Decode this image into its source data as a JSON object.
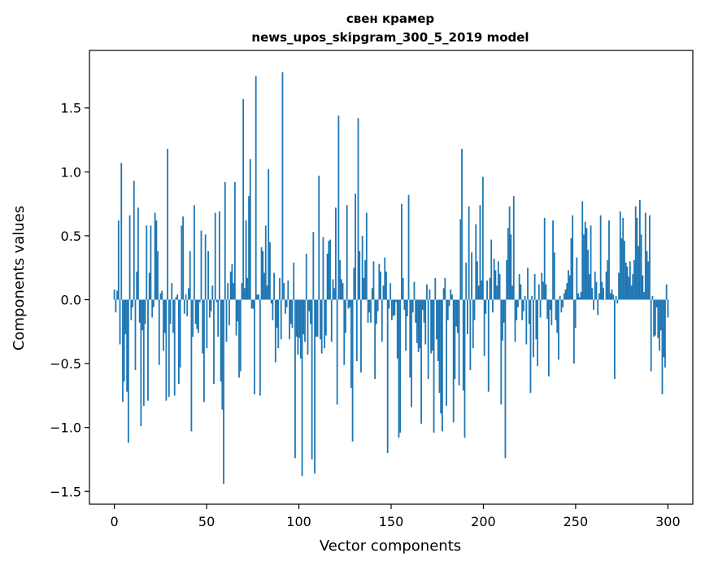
{
  "chart_data": {
    "type": "bar",
    "title": "свен крамер",
    "subtitle": "news_upos_skipgram_300_5_2019 model",
    "xlabel": "Vector components",
    "ylabel": "Components values",
    "xlim": [
      -13.5,
      313.5
    ],
    "ylim": [
      -1.6,
      1.95
    ],
    "xticks": [
      0,
      50,
      100,
      150,
      200,
      250,
      300
    ],
    "xtick_labels": [
      "0",
      "50",
      "100",
      "150",
      "200",
      "250",
      "300"
    ],
    "yticks": [
      -1.5,
      -1.0,
      -0.5,
      0.0,
      0.5,
      1.0,
      1.5
    ],
    "ytick_labels": [
      "−1.5",
      "−1.0",
      "−0.5",
      "0.0",
      "0.5",
      "1.0",
      "1.5"
    ],
    "grid": false,
    "bar_color": "#1f77b4",
    "values": [
      0.08,
      -0.1,
      0.07,
      0.62,
      -0.35,
      1.07,
      -0.8,
      -0.64,
      -0.27,
      -0.72,
      -1.12,
      0.66,
      -0.16,
      -0.06,
      0.93,
      -0.55,
      0.22,
      0.72,
      -0.18,
      -0.99,
      -0.24,
      -0.83,
      -0.19,
      0.58,
      -0.79,
      0.21,
      0.58,
      -0.14,
      -0.06,
      0.68,
      0.62,
      0.38,
      -0.51,
      0.05,
      0.07,
      -0.4,
      -0.26,
      -0.79,
      1.18,
      -0.76,
      -0.19,
      0.13,
      -0.26,
      -0.75,
      0.02,
      0.04,
      -0.66,
      -0.53,
      0.58,
      0.65,
      -0.11,
      0.04,
      -0.13,
      0.09,
      0.38,
      -1.03,
      -0.29,
      0.74,
      -0.19,
      -0.23,
      -0.26,
      -0.02,
      0.54,
      -0.42,
      -0.8,
      0.51,
      -0.38,
      0.38,
      -0.14,
      -0.09,
      0.11,
      -0.66,
      0.68,
      -0.02,
      -0.29,
      0.69,
      -0.64,
      -0.86,
      -1.44,
      0.92,
      -0.33,
      0.13,
      -0.2,
      0.22,
      0.28,
      0.13,
      0.92,
      -0.28,
      -0.17,
      -0.61,
      -0.56,
      0.13,
      1.57,
      0.09,
      0.62,
      0.17,
      0.81,
      1.1,
      -0.07,
      -0.07,
      -0.74,
      1.75,
      0.04,
      0.04,
      -0.75,
      0.41,
      0.38,
      0.21,
      0.58,
      0.11,
      1.02,
      0.45,
      -0.03,
      -0.16,
      0.21,
      -0.49,
      -0.22,
      -0.38,
      0.17,
      -0.31,
      1.78,
      0.13,
      -0.11,
      -0.06,
      0.15,
      -0.31,
      -0.19,
      -0.22,
      0.29,
      -1.24,
      -0.29,
      -0.43,
      -0.3,
      -0.46,
      -1.38,
      -0.27,
      -0.33,
      0.36,
      -0.43,
      -0.09,
      -0.19,
      -1.25,
      0.53,
      -1.36,
      -0.29,
      -0.29,
      0.97,
      -0.31,
      -0.42,
      0.49,
      -0.38,
      -0.28,
      0.36,
      0.46,
      0.47,
      -0.33,
      0.16,
      0.09,
      0.72,
      -0.82,
      1.44,
      0.31,
      0.16,
      0.13,
      -0.51,
      -0.26,
      0.74,
      -0.07,
      -0.06,
      -0.69,
      -1.11,
      0.25,
      0.83,
      -0.48,
      1.42,
      0.38,
      -0.57,
      0.5,
      0.17,
      0.31,
      0.68,
      -0.18,
      -0.1,
      -0.18,
      0.09,
      0.3,
      -0.62,
      -0.19,
      -0.09,
      0.28,
      0.22,
      -0.33,
      0.11,
      0.33,
      0.22,
      -1.2,
      -0.07,
      0.13,
      -0.16,
      -0.13,
      -0.12,
      -0.02,
      -0.46,
      -1.08,
      -1.04,
      0.75,
      0.17,
      -0.08,
      -0.4,
      -0.13,
      0.82,
      -0.61,
      -0.84,
      -0.1,
      0.14,
      -0.18,
      -0.34,
      -0.41,
      -0.38,
      -0.97,
      -0.08,
      -0.18,
      -0.35,
      0.12,
      -0.62,
      0.08,
      -0.42,
      -0.4,
      -1.04,
      0.17,
      -0.31,
      -0.48,
      -0.73,
      -0.89,
      -1.03,
      0.09,
      0.17,
      -0.83,
      -0.16,
      -0.05,
      0.08,
      0.04,
      -0.96,
      -0.62,
      -0.21,
      -0.26,
      -0.67,
      0.63,
      1.18,
      -0.71,
      -1.08,
      0.29,
      -0.27,
      0.73,
      -0.55,
      0.37,
      -0.38,
      -0.16,
      0.59,
      0.3,
      0.11,
      0.74,
      0.15,
      0.96,
      -0.44,
      -0.11,
      0.15,
      -0.72,
      0.17,
      0.47,
      -0.1,
      0.32,
      0.23,
      0.11,
      0.3,
      0.2,
      -0.82,
      -0.32,
      -0.18,
      -1.24,
      0.31,
      0.56,
      0.73,
      0.51,
      0.11,
      0.81,
      -0.33,
      -0.16,
      -0.06,
      0.2,
      0.12,
      -0.16,
      -0.09,
      0.03,
      -0.35,
      0.25,
      -0.19,
      -0.73,
      0.03,
      -0.45,
      0.2,
      -0.31,
      -0.52,
      0.12,
      -0.14,
      0.21,
      0.14,
      0.64,
      0.12,
      -0.15,
      -0.6,
      -0.08,
      -0.2,
      0.62,
      0.37,
      -0.16,
      -0.26,
      -0.47,
      0.03,
      -0.1,
      -0.06,
      0.05,
      0.08,
      0.13,
      0.23,
      0.19,
      0.48,
      0.66,
      -0.5,
      -0.22,
      0.33,
      0.05,
      0.02,
      0.06,
      0.77,
      0.51,
      0.61,
      0.56,
      0.39,
      0.2,
      0.58,
      0.09,
      -0.08,
      0.22,
      0.14,
      -0.12,
      0.05,
      0.66,
      0.14,
      0.09,
      0.0,
      0.22,
      0.31,
      0.62,
      0.05,
      0.08,
      0.04,
      -0.62,
      0.03,
      -0.03,
      0.21,
      0.69,
      0.48,
      0.64,
      0.46,
      0.29,
      0.26,
      0.18,
      0.3,
      0.11,
      0.2,
      0.31,
      0.73,
      0.64,
      0.42,
      0.78,
      0.51,
      0.19,
      0.06,
      0.68,
      0.38,
      0.3,
      0.66,
      -0.56,
      0.03,
      -0.29,
      -0.28,
      -0.06,
      -0.3,
      -0.4,
      -0.24,
      -0.74,
      -0.45,
      -0.53,
      0.12,
      -0.14
    ]
  }
}
